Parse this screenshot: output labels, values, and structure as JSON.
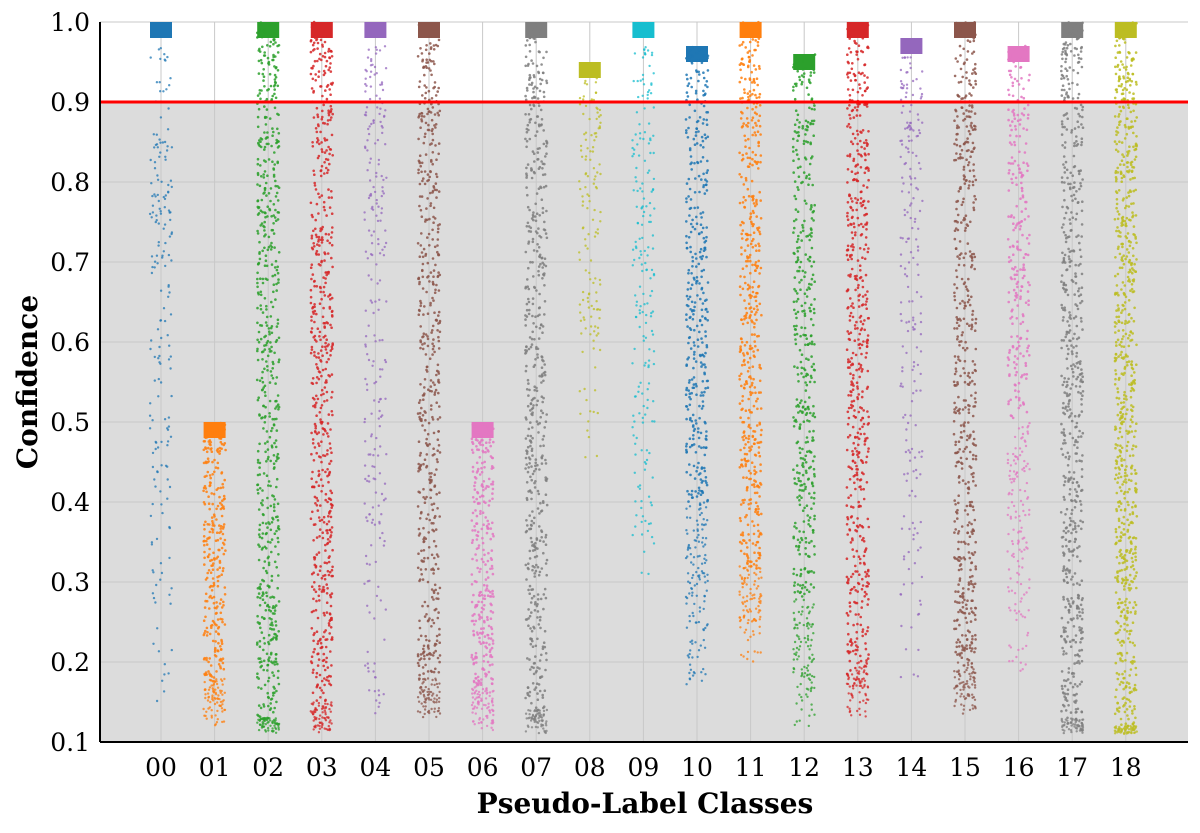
{
  "chart_data": {
    "type": "strip",
    "title": "",
    "xlabel": "Pseudo-Label Classes",
    "ylabel": "Confidence",
    "ylim": [
      0.1,
      1.0
    ],
    "yticks": [
      "0.1",
      "0.2",
      "0.3",
      "0.4",
      "0.5",
      "0.6",
      "0.7",
      "0.8",
      "0.9",
      "1.0"
    ],
    "grid": true,
    "threshold": {
      "value": 0.9,
      "color": "#ff0000"
    },
    "below_threshold_fill": "#dcdcdc",
    "categories": [
      "00",
      "01",
      "02",
      "03",
      "04",
      "05",
      "06",
      "07",
      "08",
      "09",
      "10",
      "11",
      "12",
      "13",
      "14",
      "15",
      "16",
      "17",
      "18"
    ],
    "colors": [
      "#1f77b4",
      "#ff7f0e",
      "#2ca02c",
      "#d62728",
      "#9467bd",
      "#8c564b",
      "#e377c2",
      "#7f7f7f",
      "#bcbd22",
      "#17becf",
      "#1f77b4",
      "#ff7f0e",
      "#2ca02c",
      "#d62728",
      "#9467bd",
      "#8c564b",
      "#e377c2",
      "#7f7f7f",
      "#bcbd22"
    ],
    "series": [
      {
        "class": "00",
        "max": 1.0,
        "min": 0.12,
        "dense_min": 0.97,
        "density": 0.35
      },
      {
        "class": "01",
        "max": 0.5,
        "min": 0.12,
        "dense_min": 0.18,
        "density": 1.0
      },
      {
        "class": "02",
        "max": 1.0,
        "min": 0.11,
        "dense_min": 0.13,
        "density": 0.8
      },
      {
        "class": "03",
        "max": 1.0,
        "min": 0.11,
        "dense_min": 0.15,
        "density": 0.8
      },
      {
        "class": "04",
        "max": 1.0,
        "min": 0.13,
        "dense_min": 0.97,
        "density": 0.5
      },
      {
        "class": "05",
        "max": 1.0,
        "min": 0.13,
        "dense_min": 0.18,
        "density": 0.7
      },
      {
        "class": "06",
        "max": 0.5,
        "min": 0.11,
        "dense_min": 0.17,
        "density": 1.0
      },
      {
        "class": "07",
        "max": 1.0,
        "min": 0.11,
        "dense_min": 0.14,
        "density": 0.7
      },
      {
        "class": "08",
        "max": 0.95,
        "min": 0.45,
        "dense_min": 0.93,
        "density": 0.4
      },
      {
        "class": "09",
        "max": 1.0,
        "min": 0.3,
        "dense_min": 0.97,
        "density": 0.5
      },
      {
        "class": "10",
        "max": 0.97,
        "min": 0.17,
        "dense_min": 0.4,
        "density": 0.75
      },
      {
        "class": "11",
        "max": 1.0,
        "min": 0.2,
        "dense_min": 0.32,
        "density": 0.85
      },
      {
        "class": "12",
        "max": 0.96,
        "min": 0.12,
        "dense_min": 0.28,
        "density": 0.7
      },
      {
        "class": "13",
        "max": 1.0,
        "min": 0.13,
        "dense_min": 0.2,
        "density": 0.8
      },
      {
        "class": "14",
        "max": 0.98,
        "min": 0.18,
        "dense_min": 0.96,
        "density": 0.45
      },
      {
        "class": "15",
        "max": 1.0,
        "min": 0.13,
        "dense_min": 0.2,
        "density": 0.75
      },
      {
        "class": "16",
        "max": 0.97,
        "min": 0.18,
        "dense_min": 0.5,
        "density": 0.6
      },
      {
        "class": "17",
        "max": 1.0,
        "min": 0.11,
        "dense_min": 0.13,
        "density": 0.8
      },
      {
        "class": "18",
        "max": 1.0,
        "min": 0.11,
        "dense_min": 0.12,
        "density": 1.0
      }
    ]
  }
}
